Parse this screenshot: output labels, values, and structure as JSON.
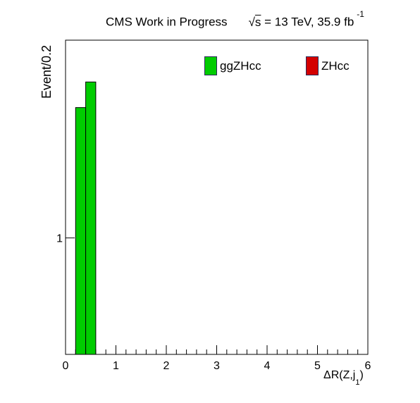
{
  "header": {
    "experiment": "CMS Work in Progress",
    "sqrt_label": "s",
    "energy": " = 13 TeV, 35.9 fb",
    "lumi_exponent": "-1"
  },
  "colors": {
    "ggZHcc": "#00cc00",
    "ZHcc": "#d40000",
    "legend_border": "#2a2a5a"
  },
  "chart_data": {
    "type": "bar",
    "histogram": true,
    "title": "",
    "xlabel_main": "ΔR(Z,j",
    "xlabel_sub": "1",
    "xlabel_close": ")",
    "ylabel": "Event/0.2",
    "xlim": [
      0,
      6
    ],
    "ylim": [
      0.75,
      1.63
    ],
    "yscale": "log",
    "grid": false,
    "legend_placement": "top-right",
    "x_ticks": [
      0,
      1,
      2,
      3,
      4,
      5,
      6
    ],
    "y_ticks": [
      1
    ],
    "bin_width": 0.2,
    "series": [
      {
        "name": "ggZHcc",
        "color": "#00cc00",
        "bins": [
          {
            "x0": 0.2,
            "x1": 0.4,
            "value": 1.38
          },
          {
            "x0": 0.4,
            "x1": 0.6,
            "value": 1.47
          }
        ]
      },
      {
        "name": "ZHcc",
        "color": "#d40000",
        "bins": []
      }
    ]
  }
}
